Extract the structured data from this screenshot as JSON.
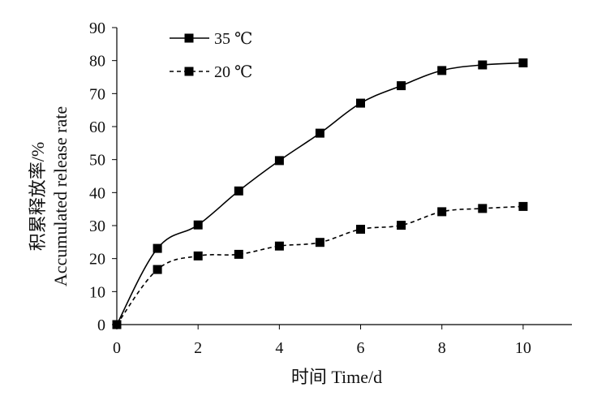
{
  "chart_data": {
    "type": "line",
    "title": "",
    "xlabel": "时间 Time/d",
    "ylabel_line1": "积累释放率/%",
    "ylabel_line2": "Accumulated release rate",
    "xlim": [
      0,
      11.2
    ],
    "ylim": [
      0,
      90
    ],
    "xticks": [
      0,
      2,
      4,
      6,
      8,
      10
    ],
    "yticks": [
      0,
      10,
      20,
      30,
      40,
      50,
      60,
      70,
      80,
      90
    ],
    "grid": false,
    "legend_position": "top-left",
    "series": [
      {
        "name": "35 ℃",
        "line_style": "solid",
        "marker": "square",
        "color": "#000000",
        "x": [
          0,
          1,
          2,
          3,
          4,
          5,
          6,
          7,
          8,
          9,
          10
        ],
        "values": [
          0,
          23.1,
          30.2,
          40.5,
          49.7,
          58.0,
          67.1,
          72.4,
          77.0,
          78.7,
          79.3
        ]
      },
      {
        "name": "20 ℃",
        "line_style": "dashed",
        "marker": "square",
        "color": "#000000",
        "x": [
          0,
          1,
          2,
          3,
          4,
          5,
          6,
          7,
          8,
          9,
          10
        ],
        "values": [
          0,
          16.7,
          20.8,
          21.3,
          23.8,
          24.9,
          28.9,
          30.1,
          34.2,
          35.2,
          35.8
        ]
      }
    ]
  }
}
